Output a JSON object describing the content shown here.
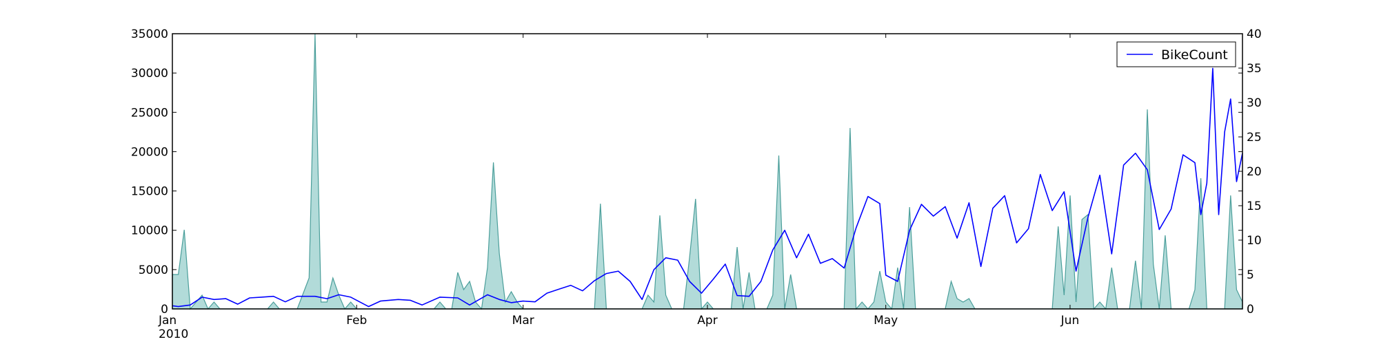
{
  "chart_data": {
    "type": "line",
    "title": "",
    "xlabel": "",
    "ylabel": "",
    "x_start": "2010-01-01",
    "x_end": "2010-06-30",
    "x_ticks": [
      {
        "date": "2010-01-01",
        "label": "Jan",
        "sublabel": "2010"
      },
      {
        "date": "2010-02-01",
        "label": "Feb"
      },
      {
        "date": "2010-03-01",
        "label": "Mar"
      },
      {
        "date": "2010-04-01",
        "label": "Apr"
      },
      {
        "date": "2010-05-01",
        "label": "May"
      },
      {
        "date": "2010-06-01",
        "label": "Jun"
      }
    ],
    "y_left": {
      "ylim": [
        0,
        35000
      ],
      "ticks": [
        0,
        5000,
        10000,
        15000,
        20000,
        25000,
        30000,
        35000
      ]
    },
    "y_right": {
      "ylim": [
        0,
        40
      ],
      "ticks": [
        0,
        5,
        10,
        15,
        20,
        25,
        30,
        35,
        40
      ]
    },
    "grid": false,
    "legend": {
      "placement": "top-right",
      "entries": [
        "BikeCount"
      ]
    },
    "series": [
      {
        "name": "BikeCount",
        "kind": "line",
        "axis": "left",
        "color": "#0000ff",
        "points": [
          [
            "2010-01-01",
            400
          ],
          [
            "2010-01-02",
            300
          ],
          [
            "2010-01-04",
            500
          ],
          [
            "2010-01-06",
            1500
          ],
          [
            "2010-01-08",
            1200
          ],
          [
            "2010-01-10",
            1300
          ],
          [
            "2010-01-12",
            600
          ],
          [
            "2010-01-14",
            1400
          ],
          [
            "2010-01-16",
            1500
          ],
          [
            "2010-01-18",
            1600
          ],
          [
            "2010-01-20",
            900
          ],
          [
            "2010-01-22",
            1600
          ],
          [
            "2010-01-25",
            1600
          ],
          [
            "2010-01-27",
            1300
          ],
          [
            "2010-01-29",
            1800
          ],
          [
            "2010-01-31",
            1500
          ],
          [
            "2010-02-03",
            300
          ],
          [
            "2010-02-05",
            1000
          ],
          [
            "2010-02-08",
            1200
          ],
          [
            "2010-02-10",
            1100
          ],
          [
            "2010-02-12",
            500
          ],
          [
            "2010-02-15",
            1500
          ],
          [
            "2010-02-18",
            1400
          ],
          [
            "2010-02-20",
            500
          ],
          [
            "2010-02-23",
            1800
          ],
          [
            "2010-02-25",
            1200
          ],
          [
            "2010-02-27",
            800
          ],
          [
            "2010-03-01",
            1000
          ],
          [
            "2010-03-03",
            900
          ],
          [
            "2010-03-05",
            2000
          ],
          [
            "2010-03-07",
            2500
          ],
          [
            "2010-03-09",
            3000
          ],
          [
            "2010-03-11",
            2300
          ],
          [
            "2010-03-13",
            3600
          ],
          [
            "2010-03-15",
            4500
          ],
          [
            "2010-03-17",
            4800
          ],
          [
            "2010-03-19",
            3500
          ],
          [
            "2010-03-21",
            1200
          ],
          [
            "2010-03-23",
            5000
          ],
          [
            "2010-03-25",
            6500
          ],
          [
            "2010-03-27",
            6200
          ],
          [
            "2010-03-29",
            3500
          ],
          [
            "2010-03-31",
            2000
          ],
          [
            "2010-04-02",
            3800
          ],
          [
            "2010-04-04",
            5700
          ],
          [
            "2010-04-06",
            1700
          ],
          [
            "2010-04-08",
            1600
          ],
          [
            "2010-04-10",
            3500
          ],
          [
            "2010-04-12",
            7500
          ],
          [
            "2010-04-14",
            10000
          ],
          [
            "2010-04-16",
            6500
          ],
          [
            "2010-04-18",
            9500
          ],
          [
            "2010-04-20",
            5800
          ],
          [
            "2010-04-22",
            6400
          ],
          [
            "2010-04-24",
            5200
          ],
          [
            "2010-04-26",
            10300
          ],
          [
            "2010-04-28",
            14300
          ],
          [
            "2010-04-30",
            13400
          ],
          [
            "2010-05-01",
            4300
          ],
          [
            "2010-05-03",
            3500
          ],
          [
            "2010-05-05",
            10000
          ],
          [
            "2010-05-07",
            13300
          ],
          [
            "2010-05-09",
            11800
          ],
          [
            "2010-05-11",
            13000
          ],
          [
            "2010-05-13",
            9000
          ],
          [
            "2010-05-15",
            13500
          ],
          [
            "2010-05-17",
            5400
          ],
          [
            "2010-05-19",
            12800
          ],
          [
            "2010-05-21",
            14400
          ],
          [
            "2010-05-23",
            8400
          ],
          [
            "2010-05-25",
            10200
          ],
          [
            "2010-05-27",
            17100
          ],
          [
            "2010-05-29",
            12500
          ],
          [
            "2010-05-31",
            14900
          ],
          [
            "2010-06-02",
            4800
          ],
          [
            "2010-06-04",
            11600
          ],
          [
            "2010-06-06",
            17000
          ],
          [
            "2010-06-08",
            7000
          ],
          [
            "2010-06-10",
            18300
          ],
          [
            "2010-06-12",
            19800
          ],
          [
            "2010-06-14",
            17700
          ],
          [
            "2010-06-16",
            10100
          ],
          [
            "2010-06-18",
            12700
          ],
          [
            "2010-06-20",
            19600
          ],
          [
            "2010-06-22",
            18600
          ],
          [
            "2010-06-23",
            12000
          ],
          [
            "2010-06-24",
            16000
          ],
          [
            "2010-06-25",
            30600
          ],
          [
            "2010-06-26",
            12000
          ],
          [
            "2010-06-27",
            22500
          ],
          [
            "2010-06-28",
            26700
          ],
          [
            "2010-06-29",
            16200
          ],
          [
            "2010-06-30",
            19800
          ]
        ]
      },
      {
        "name": "",
        "kind": "area",
        "axis": "right",
        "color": "#7fc3c0",
        "points": [
          [
            "2010-01-01",
            5
          ],
          [
            "2010-01-02",
            5
          ],
          [
            "2010-01-03",
            11.5
          ],
          [
            "2010-01-04",
            0
          ],
          [
            "2010-01-06",
            2
          ],
          [
            "2010-01-07",
            0
          ],
          [
            "2010-01-08",
            1
          ],
          [
            "2010-01-09",
            0
          ],
          [
            "2010-01-17",
            0
          ],
          [
            "2010-01-18",
            1
          ],
          [
            "2010-01-19",
            0
          ],
          [
            "2010-01-22",
            0
          ],
          [
            "2010-01-24",
            4.5
          ],
          [
            "2010-01-25",
            40
          ],
          [
            "2010-01-26",
            1
          ],
          [
            "2010-01-27",
            1
          ],
          [
            "2010-01-28",
            4.5
          ],
          [
            "2010-01-29",
            2
          ],
          [
            "2010-01-30",
            0
          ],
          [
            "2010-01-31",
            1
          ],
          [
            "2010-02-01",
            0
          ],
          [
            "2010-02-14",
            0
          ],
          [
            "2010-02-15",
            1
          ],
          [
            "2010-02-16",
            0
          ],
          [
            "2010-02-17",
            0
          ],
          [
            "2010-02-18",
            5.3
          ],
          [
            "2010-02-19",
            2.8
          ],
          [
            "2010-02-20",
            4
          ],
          [
            "2010-02-21",
            1
          ],
          [
            "2010-02-22",
            0
          ],
          [
            "2010-02-23",
            6
          ],
          [
            "2010-02-24",
            21.3
          ],
          [
            "2010-02-25",
            8
          ],
          [
            "2010-02-26",
            1
          ],
          [
            "2010-02-27",
            2.5
          ],
          [
            "2010-02-28",
            1
          ],
          [
            "2010-03-01",
            0
          ],
          [
            "2010-03-13",
            0
          ],
          [
            "2010-03-14",
            15.3
          ],
          [
            "2010-03-15",
            0
          ],
          [
            "2010-03-21",
            0
          ],
          [
            "2010-03-22",
            2
          ],
          [
            "2010-03-23",
            1
          ],
          [
            "2010-03-24",
            13.6
          ],
          [
            "2010-03-25",
            2
          ],
          [
            "2010-03-26",
            0
          ],
          [
            "2010-03-28",
            0
          ],
          [
            "2010-03-29",
            7.5
          ],
          [
            "2010-03-30",
            16
          ],
          [
            "2010-03-31",
            0
          ],
          [
            "2010-04-01",
            1
          ],
          [
            "2010-04-02",
            0
          ],
          [
            "2010-04-05",
            0
          ],
          [
            "2010-04-06",
            9
          ],
          [
            "2010-04-07",
            0
          ],
          [
            "2010-04-08",
            5.3
          ],
          [
            "2010-04-09",
            0
          ],
          [
            "2010-04-11",
            0
          ],
          [
            "2010-04-12",
            2
          ],
          [
            "2010-04-13",
            22.3
          ],
          [
            "2010-04-14",
            0
          ],
          [
            "2010-04-15",
            5
          ],
          [
            "2010-04-16",
            0
          ],
          [
            "2010-04-24",
            0
          ],
          [
            "2010-04-25",
            26.3
          ],
          [
            "2010-04-26",
            0
          ],
          [
            "2010-04-27",
            1
          ],
          [
            "2010-04-28",
            0
          ],
          [
            "2010-04-29",
            1
          ],
          [
            "2010-04-30",
            5.5
          ],
          [
            "2010-05-01",
            1
          ],
          [
            "2010-05-02",
            0
          ],
          [
            "2010-05-03",
            6
          ],
          [
            "2010-05-04",
            0
          ],
          [
            "2010-05-05",
            14.8
          ],
          [
            "2010-05-06",
            0
          ],
          [
            "2010-05-11",
            0
          ],
          [
            "2010-05-12",
            4
          ],
          [
            "2010-05-13",
            1.5
          ],
          [
            "2010-05-14",
            1
          ],
          [
            "2010-05-15",
            1.5
          ],
          [
            "2010-05-16",
            0
          ],
          [
            "2010-05-29",
            0
          ],
          [
            "2010-05-30",
            12
          ],
          [
            "2010-05-31",
            2
          ],
          [
            "2010-06-01",
            16.5
          ],
          [
            "2010-06-02",
            1
          ],
          [
            "2010-06-03",
            13
          ],
          [
            "2010-06-04",
            13.7
          ],
          [
            "2010-06-05",
            0
          ],
          [
            "2010-06-06",
            1
          ],
          [
            "2010-06-07",
            0
          ],
          [
            "2010-06-08",
            6
          ],
          [
            "2010-06-09",
            0
          ],
          [
            "2010-06-11",
            0
          ],
          [
            "2010-06-12",
            7
          ],
          [
            "2010-06-13",
            0
          ],
          [
            "2010-06-14",
            29
          ],
          [
            "2010-06-15",
            6.5
          ],
          [
            "2010-06-16",
            0
          ],
          [
            "2010-06-17",
            10.7
          ],
          [
            "2010-06-18",
            0
          ],
          [
            "2010-06-21",
            0
          ],
          [
            "2010-06-22",
            2.8
          ],
          [
            "2010-06-23",
            19
          ],
          [
            "2010-06-24",
            0
          ],
          [
            "2010-06-27",
            0
          ],
          [
            "2010-06-28",
            16.5
          ],
          [
            "2010-06-29",
            2.8
          ],
          [
            "2010-06-30",
            1
          ]
        ]
      }
    ]
  }
}
